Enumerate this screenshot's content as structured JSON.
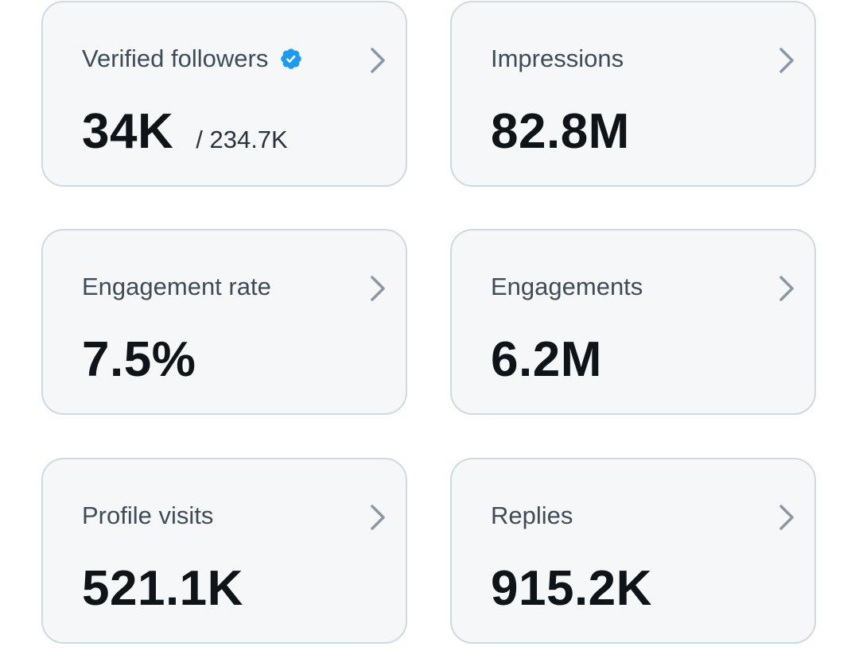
{
  "colors": {
    "card_background": "#f5f7f8",
    "card_border": "#cfd9de",
    "label_text": "#3f4c57",
    "value_text": "#0f1419",
    "chevron": "#8a98a4",
    "verified_badge": "#1d9bf0"
  },
  "cards": [
    {
      "label": "Verified followers",
      "value": "34K",
      "subvalue": "/ 234.7K",
      "icon": "verified-badge-icon"
    },
    {
      "label": "Impressions",
      "value": "82.8M"
    },
    {
      "label": "Engagement rate",
      "value": "7.5%"
    },
    {
      "label": "Engagements",
      "value": "6.2M"
    },
    {
      "label": "Profile visits",
      "value": "521.1K"
    },
    {
      "label": "Replies",
      "value": "915.2K"
    }
  ]
}
